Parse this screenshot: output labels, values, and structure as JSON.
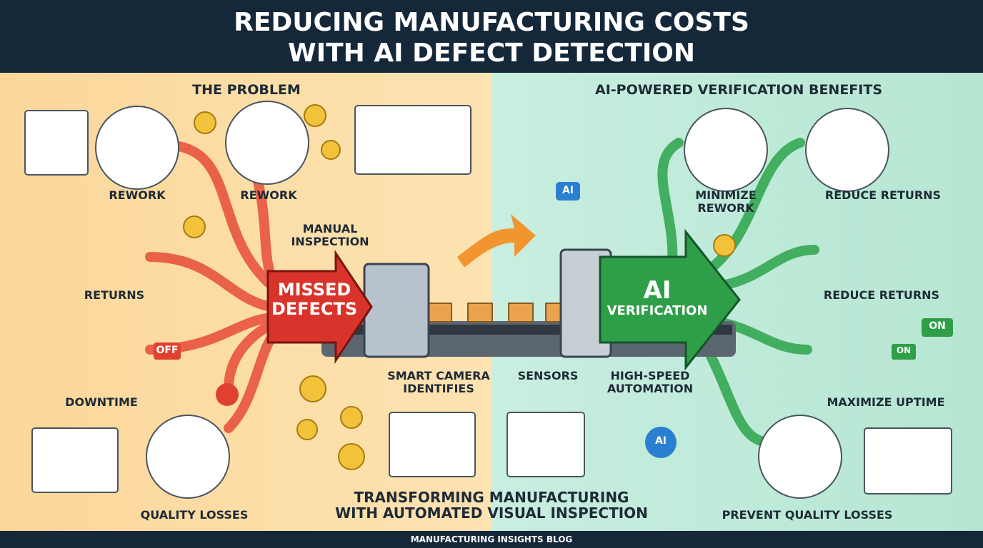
{
  "header": {
    "title_lines": [
      "REDUCING MANUFACTURING COSTS",
      "WITH AI DEFECT DETECTION"
    ]
  },
  "problem": {
    "title": "THE PROBLEM",
    "items": [
      {
        "label": [
          "REWORK"
        ]
      },
      {
        "label": [
          "REWORK"
        ]
      },
      {
        "label": [
          "RETURNS"
        ]
      },
      {
        "label": [
          "DOWNTIME"
        ],
        "badge": "OFF"
      },
      {
        "label": [
          "QUALITY LOSSES"
        ]
      }
    ]
  },
  "center": {
    "manual_inspection": [
      "MANUAL",
      "INSPECTION"
    ],
    "missed_defects": [
      "MISSED",
      "DEFECTS"
    ],
    "smart_camera": [
      "SMART CAMERA",
      "IDENTIFIES"
    ],
    "sensors": "SENSORS",
    "high_speed": [
      "HIGH-SPEED",
      "AUTOMATION"
    ],
    "ai_verification": [
      "AI",
      "VERIFICATION"
    ],
    "robot_badge": "AI",
    "head_badge": "AI",
    "tagline": [
      "TRANSFORMING MANUFACTURING",
      "WITH AUTOMATED VISUAL INSPECTION"
    ]
  },
  "benefits": {
    "title": "AI-POWERED VERIFICATION BENEFITS",
    "items": [
      {
        "label": [
          "MINIMIZE",
          "REWORK"
        ]
      },
      {
        "label": [
          "REDUCE RETURNS"
        ]
      },
      {
        "label": [
          "REDUCE RETURNS"
        ]
      },
      {
        "label": [
          "MAXIMIZE UPTIME"
        ],
        "badges": [
          "ON",
          "ON"
        ]
      },
      {
        "label": [
          "PREVENT QUALITY LOSSES"
        ]
      }
    ]
  },
  "footer": {
    "text": "MANUFACTURING INSIGHTS BLOG"
  }
}
